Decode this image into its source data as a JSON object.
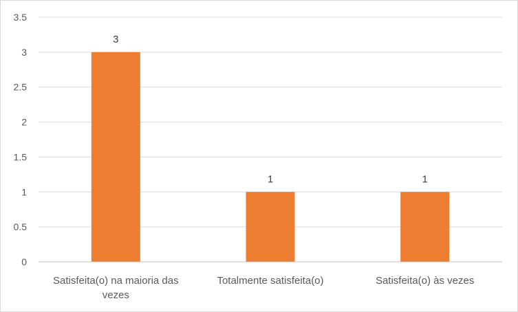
{
  "chart_data": {
    "type": "bar",
    "title": "",
    "xlabel": "",
    "ylabel": "",
    "categories": [
      "Satisfeita(o) na maioria das vezes",
      "Totalmente satisfeita(o)",
      "Satisfeita(o) às vezes"
    ],
    "category_lines": [
      [
        "Satisfeita(o) na maioria das",
        "vezes"
      ],
      [
        "Totalmente satisfeita(o)"
      ],
      [
        "Satisfeita(o) às vezes"
      ]
    ],
    "values": [
      3,
      1,
      1
    ],
    "data_labels": [
      "3",
      "1",
      "1"
    ],
    "ylim": [
      0,
      3.5
    ],
    "yticks": [
      0,
      0.5,
      1,
      1.5,
      2,
      2.5,
      3,
      3.5
    ],
    "ytick_labels": [
      "0",
      "0.5",
      "1",
      "1.5",
      "2",
      "2.5",
      "3",
      "3.5"
    ],
    "grid": true,
    "legend": "none",
    "colors": {
      "bar": "#ED7D31",
      "grid": "#D9D9D9",
      "axis": "#BFBFBF",
      "text": "#595959"
    }
  }
}
